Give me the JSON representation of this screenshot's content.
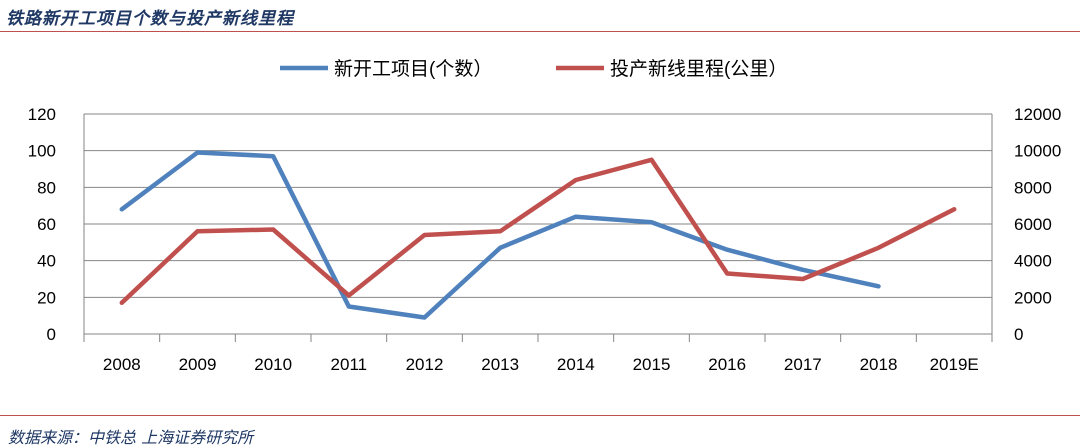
{
  "page": {
    "title": "铁路新开工项目个数与投产新线里程",
    "source": "数据来源：中铁总 上海证券研究所"
  },
  "colors": {
    "series_blue": "#4f81bd",
    "series_red": "#c0504d",
    "grid": "#868686",
    "rule": "#c0504d",
    "title": "#1f3864"
  },
  "chart_data": {
    "type": "line",
    "title": "",
    "categories": [
      "2008",
      "2009",
      "2010",
      "2011",
      "2012",
      "2013",
      "2014",
      "2015",
      "2016",
      "2017",
      "2018",
      "2019E"
    ],
    "y_left": {
      "min": 0,
      "max": 120,
      "step": 20,
      "ticks": [
        "0",
        "20",
        "40",
        "60",
        "80",
        "100",
        "120"
      ]
    },
    "y_right": {
      "min": 0,
      "max": 12000,
      "step": 2000,
      "ticks": [
        "0",
        "2000",
        "4000",
        "6000",
        "8000",
        "10000",
        "12000"
      ]
    },
    "grid": true,
    "legend_position": "top-center",
    "series": [
      {
        "name": "新开工项目(个数）",
        "axis": "left",
        "color": "#4f81bd",
        "values": [
          68,
          99,
          97,
          15,
          9,
          47,
          64,
          61,
          46,
          35,
          26,
          null
        ]
      },
      {
        "name": "投产新线里程(公里）",
        "axis": "right",
        "color": "#c0504d",
        "values": [
          1700,
          5600,
          5700,
          2100,
          5400,
          5600,
          8400,
          9500,
          3300,
          3000,
          4700,
          6800
        ]
      }
    ]
  }
}
